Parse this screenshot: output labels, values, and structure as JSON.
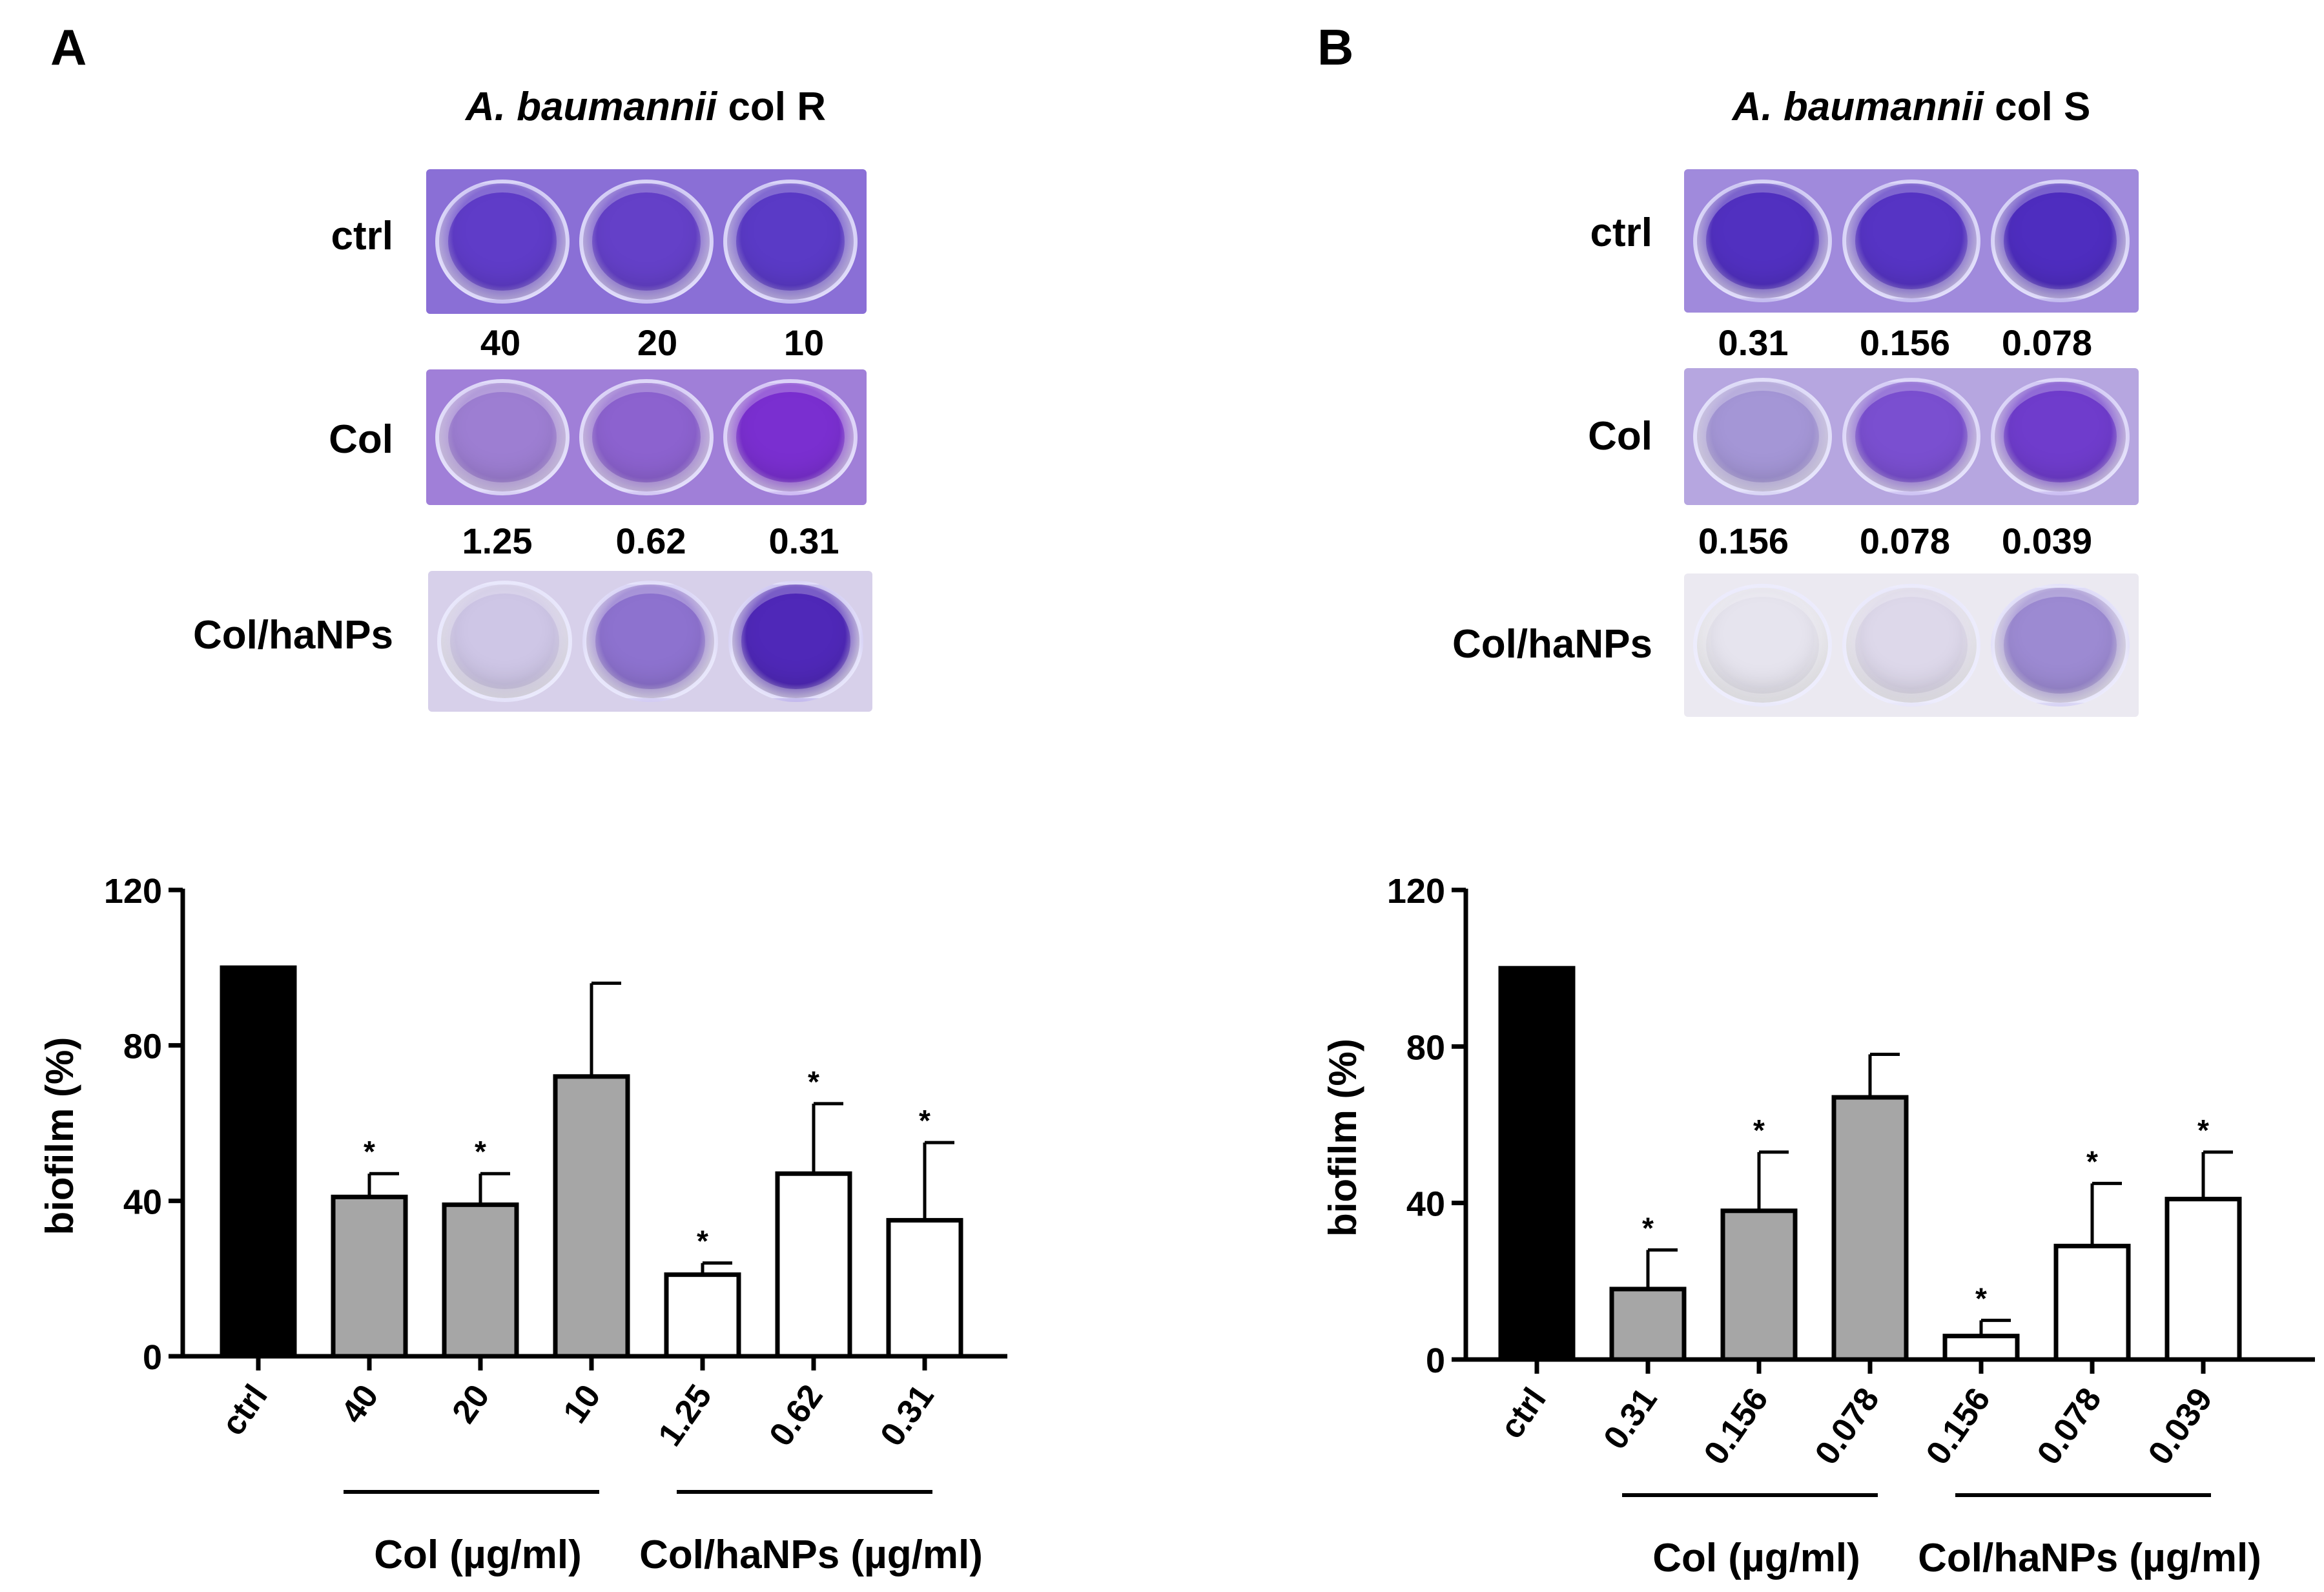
{
  "panels": [
    {
      "letter": "A",
      "title_italic": "A. baumannii",
      "title_rest": " col R",
      "plate_rows": [
        {
          "label": "ctrl",
          "concs": [],
          "well_colors": [
            "#5f3cc8",
            "#6440c8",
            "#5a3ac6"
          ],
          "bg": "#8a6fd6"
        },
        {
          "label": "Col",
          "concs": [
            "40",
            "20",
            "10"
          ],
          "well_colors": [
            "#9d7ed2",
            "#8c62cf",
            "#7a2fd0"
          ],
          "bg": "#a07fd8"
        },
        {
          "label": "Col/haNPs",
          "concs": [
            "1.25",
            "0.62",
            "0.31"
          ],
          "well_colors": [
            "#cec6e6",
            "#8d72cf",
            "#4f28b8"
          ],
          "bg": "#d7d0ea"
        }
      ]
    },
    {
      "letter": "B",
      "title_italic": "A. baumannii",
      "title_rest": " col S",
      "plate_rows": [
        {
          "label": "ctrl",
          "concs": [],
          "well_colors": [
            "#5130c0",
            "#5634c4",
            "#4e2dbf"
          ],
          "bg": "#a08adc"
        },
        {
          "label": "Col",
          "concs": [
            "0.31",
            "0.156",
            "0.078"
          ],
          "well_colors": [
            "#a496d6",
            "#7a4fd0",
            "#6f3ccc"
          ],
          "bg": "#b6a6e0"
        },
        {
          "label": "Col/haNPs",
          "concs": [
            "0.156",
            "0.078",
            "0.039"
          ],
          "well_colors": [
            "#e6e4ee",
            "#ddd8ea",
            "#9c8ad2"
          ],
          "bg": "#ebe9f1"
        }
      ]
    }
  ],
  "chart_data": [
    {
      "type": "bar",
      "panel": "A",
      "ylabel": "biofilm (%)",
      "ylim": [
        0,
        120
      ],
      "yticks": [
        "0",
        "40",
        "80",
        "120"
      ],
      "categories": [
        "ctrl",
        "40",
        "20",
        "10",
        "1.25",
        "0.62",
        "0.31"
      ],
      "values": [
        100,
        41,
        39,
        72,
        21,
        47,
        35
      ],
      "errors": [
        0,
        6,
        8,
        24,
        3,
        18,
        20
      ],
      "significance": [
        "",
        "*",
        "*",
        "",
        "*",
        "*",
        "*"
      ],
      "bar_colors": [
        "#000000",
        "#a6a6a6",
        "#a6a6a6",
        "#a6a6a6",
        "#ffffff",
        "#ffffff",
        "#ffffff"
      ],
      "groups": [
        {
          "label": "Col (µg/ml)",
          "from": 1,
          "to": 3
        },
        {
          "label": "Col/haNPs (µg/ml)",
          "from": 4,
          "to": 6
        }
      ]
    },
    {
      "type": "bar",
      "panel": "B",
      "ylabel": "biofilm (%)",
      "ylim": [
        0,
        120
      ],
      "yticks": [
        "0",
        "40",
        "80",
        "120"
      ],
      "categories": [
        "ctrl",
        "0.31",
        "0.156",
        "0.078",
        "0.156",
        "0.078",
        "0.039"
      ],
      "values": [
        100,
        18,
        38,
        67,
        6,
        29,
        41
      ],
      "errors": [
        0,
        10,
        15,
        11,
        4,
        16,
        12
      ],
      "significance": [
        "",
        "*",
        "*",
        "",
        "*",
        "*",
        "*"
      ],
      "bar_colors": [
        "#000000",
        "#a6a6a6",
        "#a6a6a6",
        "#a6a6a6",
        "#ffffff",
        "#ffffff",
        "#ffffff"
      ],
      "groups": [
        {
          "label": "Col (µg/ml)",
          "from": 1,
          "to": 3
        },
        {
          "label": "Col/haNPs (µg/ml)",
          "from": 4,
          "to": 6
        }
      ]
    }
  ]
}
